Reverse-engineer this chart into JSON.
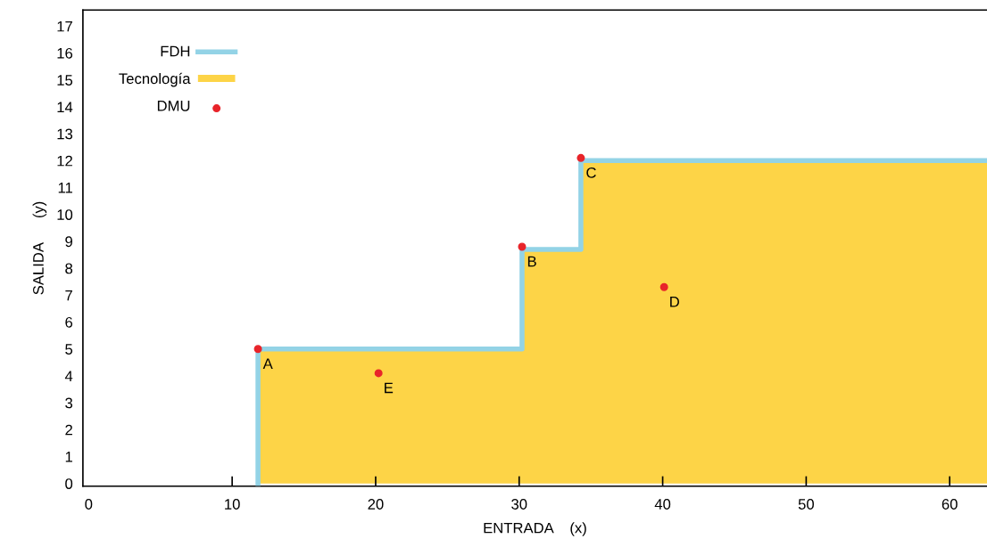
{
  "chart_data": {
    "type": "area",
    "xlabel": "ENTRADA    (x)",
    "ylabel": "SALIDA      (y)",
    "xlim": [
      -0.4,
      62.6
    ],
    "ylim": [
      -0.1,
      17.6
    ],
    "xticks": [
      0,
      10,
      20,
      30,
      40,
      50,
      60
    ],
    "yticks": [
      0,
      1,
      2,
      3,
      4,
      5,
      6,
      7,
      8,
      9,
      10,
      11,
      12,
      13,
      14,
      15,
      16,
      17
    ],
    "grid": false,
    "legend": "top left",
    "series": [
      {
        "name": "FDH",
        "type": "step",
        "color": "#93d3e6",
        "x": [
          11.8,
          30.2,
          34.3,
          62.6
        ],
        "values": [
          5,
          8.7,
          12,
          12
        ]
      },
      {
        "name": "Tecnología",
        "color": "#fdd447",
        "x": [
          11.8,
          30.2,
          34.3,
          62.6
        ],
        "values": [
          5,
          8.7,
          12,
          12
        ]
      },
      {
        "name": "DMU",
        "type": "scatter",
        "color": "#e8242a",
        "marker": "circle",
        "x": [
          11.8,
          30.2,
          34.3,
          40.1,
          20.2
        ],
        "values": [
          5,
          8.8,
          12.1,
          7.3,
          4.1
        ]
      }
    ],
    "annotations": [
      {
        "text": "A",
        "x": 11.8,
        "y": 5
      },
      {
        "text": "B",
        "x": 30.2,
        "y": 8.8
      },
      {
        "text": "C",
        "x": 34.3,
        "y": 12.1
      },
      {
        "text": "D",
        "x": 40.1,
        "y": 7.3
      },
      {
        "text": "E",
        "x": 20.2,
        "y": 4.1
      }
    ]
  }
}
